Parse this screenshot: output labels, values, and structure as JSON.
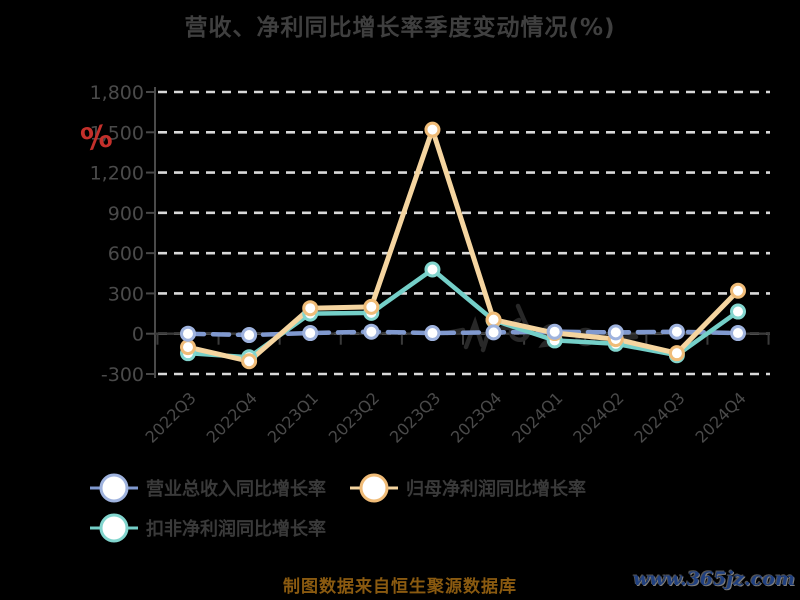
{
  "title": "营收、净利同比增长率季度变动情况(%)",
  "y_axis": {
    "unit_label": "%",
    "tick_labels": [
      "1,800",
      "1,500",
      "1,200",
      "900",
      "600",
      "300",
      "0",
      "-300"
    ]
  },
  "chart_data": {
    "type": "line",
    "title": "营收、净利同比增长率季度变动情况(%)",
    "categories": [
      "2022Q3",
      "2022Q4",
      "2023Q1",
      "2023Q2",
      "2023Q3",
      "2023Q4",
      "2024Q1",
      "2024Q2",
      "2024Q3",
      "2024Q4"
    ],
    "series": [
      {
        "name": "营业总收入同比增长率",
        "color": "#8099cf",
        "marker_ring": "#9fb3de",
        "line_style": "dashed",
        "values": [
          0,
          -10,
          5,
          15,
          5,
          10,
          15,
          10,
          15,
          5
        ]
      },
      {
        "name": "归母净利润同比增长率",
        "color": "#f5d5a0",
        "marker_ring": "#f0bc78",
        "line_style": "solid",
        "values": [
          -100,
          -205,
          190,
          200,
          1520,
          105,
          5,
          -40,
          -145,
          320
        ]
      },
      {
        "name": "扣非净利润同比增长率",
        "color": "#74cfc8",
        "marker_ring": "#82d5ce",
        "line_style": "solid",
        "values": [
          -145,
          -175,
          150,
          155,
          478,
          100,
          -50,
          -75,
          -160,
          165
        ]
      }
    ],
    "ylim": [
      -300,
      1800
    ],
    "y_tick_step": 300,
    "grid": "horizontal-dashed",
    "legend_position": "bottom-left"
  },
  "footer": {
    "source_note": "制图数据来自恒生聚源数据库"
  },
  "watermark": {
    "label": "www.365jz.com"
  },
  "colors": {
    "background": "#000000",
    "title_text": "#3f3f3f",
    "axis_text": "#4a4a4a",
    "gridline": "#d9d9d9",
    "axis_line": "#3a3a3a",
    "percent_label": "#c4302b",
    "footer_text": "#8a5a10",
    "watermark_text": "#20407f"
  }
}
